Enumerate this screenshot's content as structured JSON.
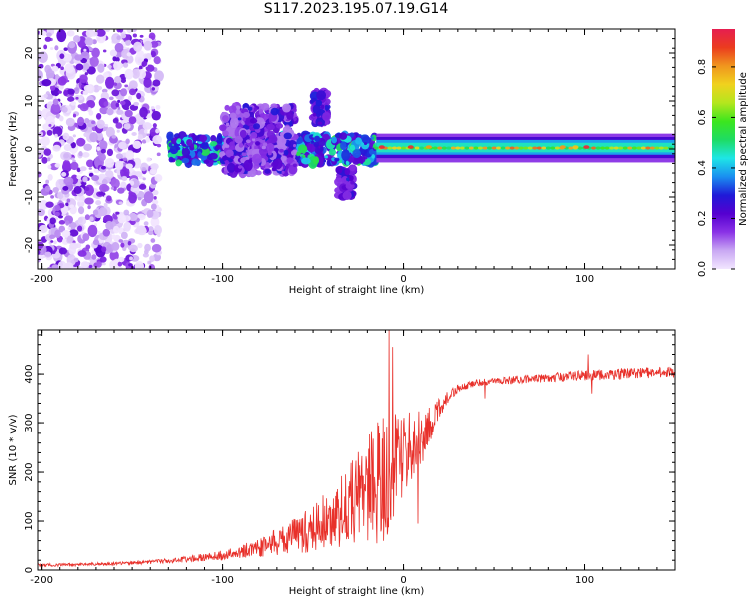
{
  "figure_title": "S117.2023.195.07.19.G14",
  "chart_data": [
    {
      "type": "heatmap",
      "title": "S117.2023.195.07.19.G14",
      "xlabel": "Height of straight line (km)",
      "ylabel": "Frequency (Hz)",
      "xlim": [
        -202,
        150
      ],
      "ylim": [
        -25,
        25
      ],
      "x_ticks": [
        -200,
        -100,
        0,
        100
      ],
      "y_ticks": [
        -20,
        -10,
        0,
        10,
        20
      ],
      "colorbar": {
        "label": "Normalized spectral amplitude",
        "range": [
          0,
          0.95
        ],
        "ticks": [
          0.0,
          0.2,
          0.4,
          0.6,
          0.8
        ],
        "colormap": [
          "#f2e6ff",
          "#c9a8f3",
          "#8a32e6",
          "#5500d0",
          "#1f1ad8",
          "#1a8ff0",
          "#1ee6e6",
          "#1edc64",
          "#3ce61e",
          "#b4e61e",
          "#f0d21e",
          "#f0961e",
          "#eb3c1e",
          "#e61e50"
        ]
      },
      "features": [
        {
          "name": "noise",
          "x_range": [
            -202,
            -135
          ],
          "f_range": [
            -25,
            25
          ],
          "amplitude": [
            0.0,
            0.22
          ]
        },
        {
          "name": "turbulent band",
          "x_range": [
            -130,
            -15
          ],
          "f_range": [
            -3,
            3
          ],
          "amplitude": [
            0.2,
            0.55
          ]
        },
        {
          "name": "spread lobe",
          "x_range": [
            -100,
            -60
          ],
          "f_range": [
            -5,
            9
          ],
          "amplitude": [
            0.1,
            0.3
          ]
        },
        {
          "name": "upper branch",
          "x_range": [
            -50,
            -42
          ],
          "f_range": [
            5,
            12
          ],
          "amplitude": [
            0.15,
            0.3
          ]
        },
        {
          "name": "lower branch",
          "x_range": [
            -36,
            -28
          ],
          "f_range": [
            -10,
            -4
          ],
          "amplitude": [
            0.15,
            0.3
          ]
        },
        {
          "name": "stable tone",
          "x_range": [
            -15,
            150
          ],
          "f_range": [
            -1,
            2
          ],
          "amplitude": [
            0.4,
            0.95
          ]
        }
      ]
    },
    {
      "type": "line",
      "xlabel": "Height of straight line (km)",
      "ylabel": "SNR (10 * v/v)",
      "xlim": [
        -202,
        150
      ],
      "ylim": [
        0,
        490
      ],
      "x_ticks": [
        -200,
        -100,
        0,
        100
      ],
      "y_ticks": [
        0,
        100,
        200,
        300,
        400
      ],
      "line_color": "#e8302a",
      "series": [
        {
          "x": [
            -202,
            -180,
            -160,
            -140,
            -120,
            -100,
            -90,
            -80,
            -70,
            -60,
            -50,
            -40,
            -30,
            -20,
            -15,
            -10,
            -5,
            0,
            5,
            10,
            15,
            20,
            25,
            30,
            40,
            50,
            60,
            70,
            80,
            90,
            100,
            110,
            120,
            130,
            140,
            150
          ],
          "y": [
            10,
            11,
            13,
            16,
            22,
            30,
            38,
            46,
            58,
            70,
            85,
            105,
            130,
            160,
            180,
            200,
            215,
            230,
            250,
            270,
            300,
            330,
            355,
            370,
            382,
            385,
            388,
            390,
            392,
            395,
            397,
            398,
            400,
            402,
            403,
            405
          ],
          "noise_amplitude": [
            3,
            3,
            3,
            4,
            6,
            10,
            14,
            20,
            28,
            38,
            50,
            65,
            85,
            110,
            130,
            140,
            110,
            90,
            75,
            55,
            35,
            20,
            12,
            8,
            7,
            7,
            8,
            8,
            9,
            10,
            11,
            11,
            11,
            11,
            11,
            11
          ],
          "spikes": [
            {
              "x": -8,
              "y": 490
            },
            {
              "x": -6,
              "y": 455
            },
            {
              "x": 8,
              "y": 95
            },
            {
              "x": 102,
              "y": 440
            },
            {
              "x": 104,
              "y": 360
            },
            {
              "x": 45,
              "y": 350
            }
          ]
        }
      ]
    }
  ]
}
